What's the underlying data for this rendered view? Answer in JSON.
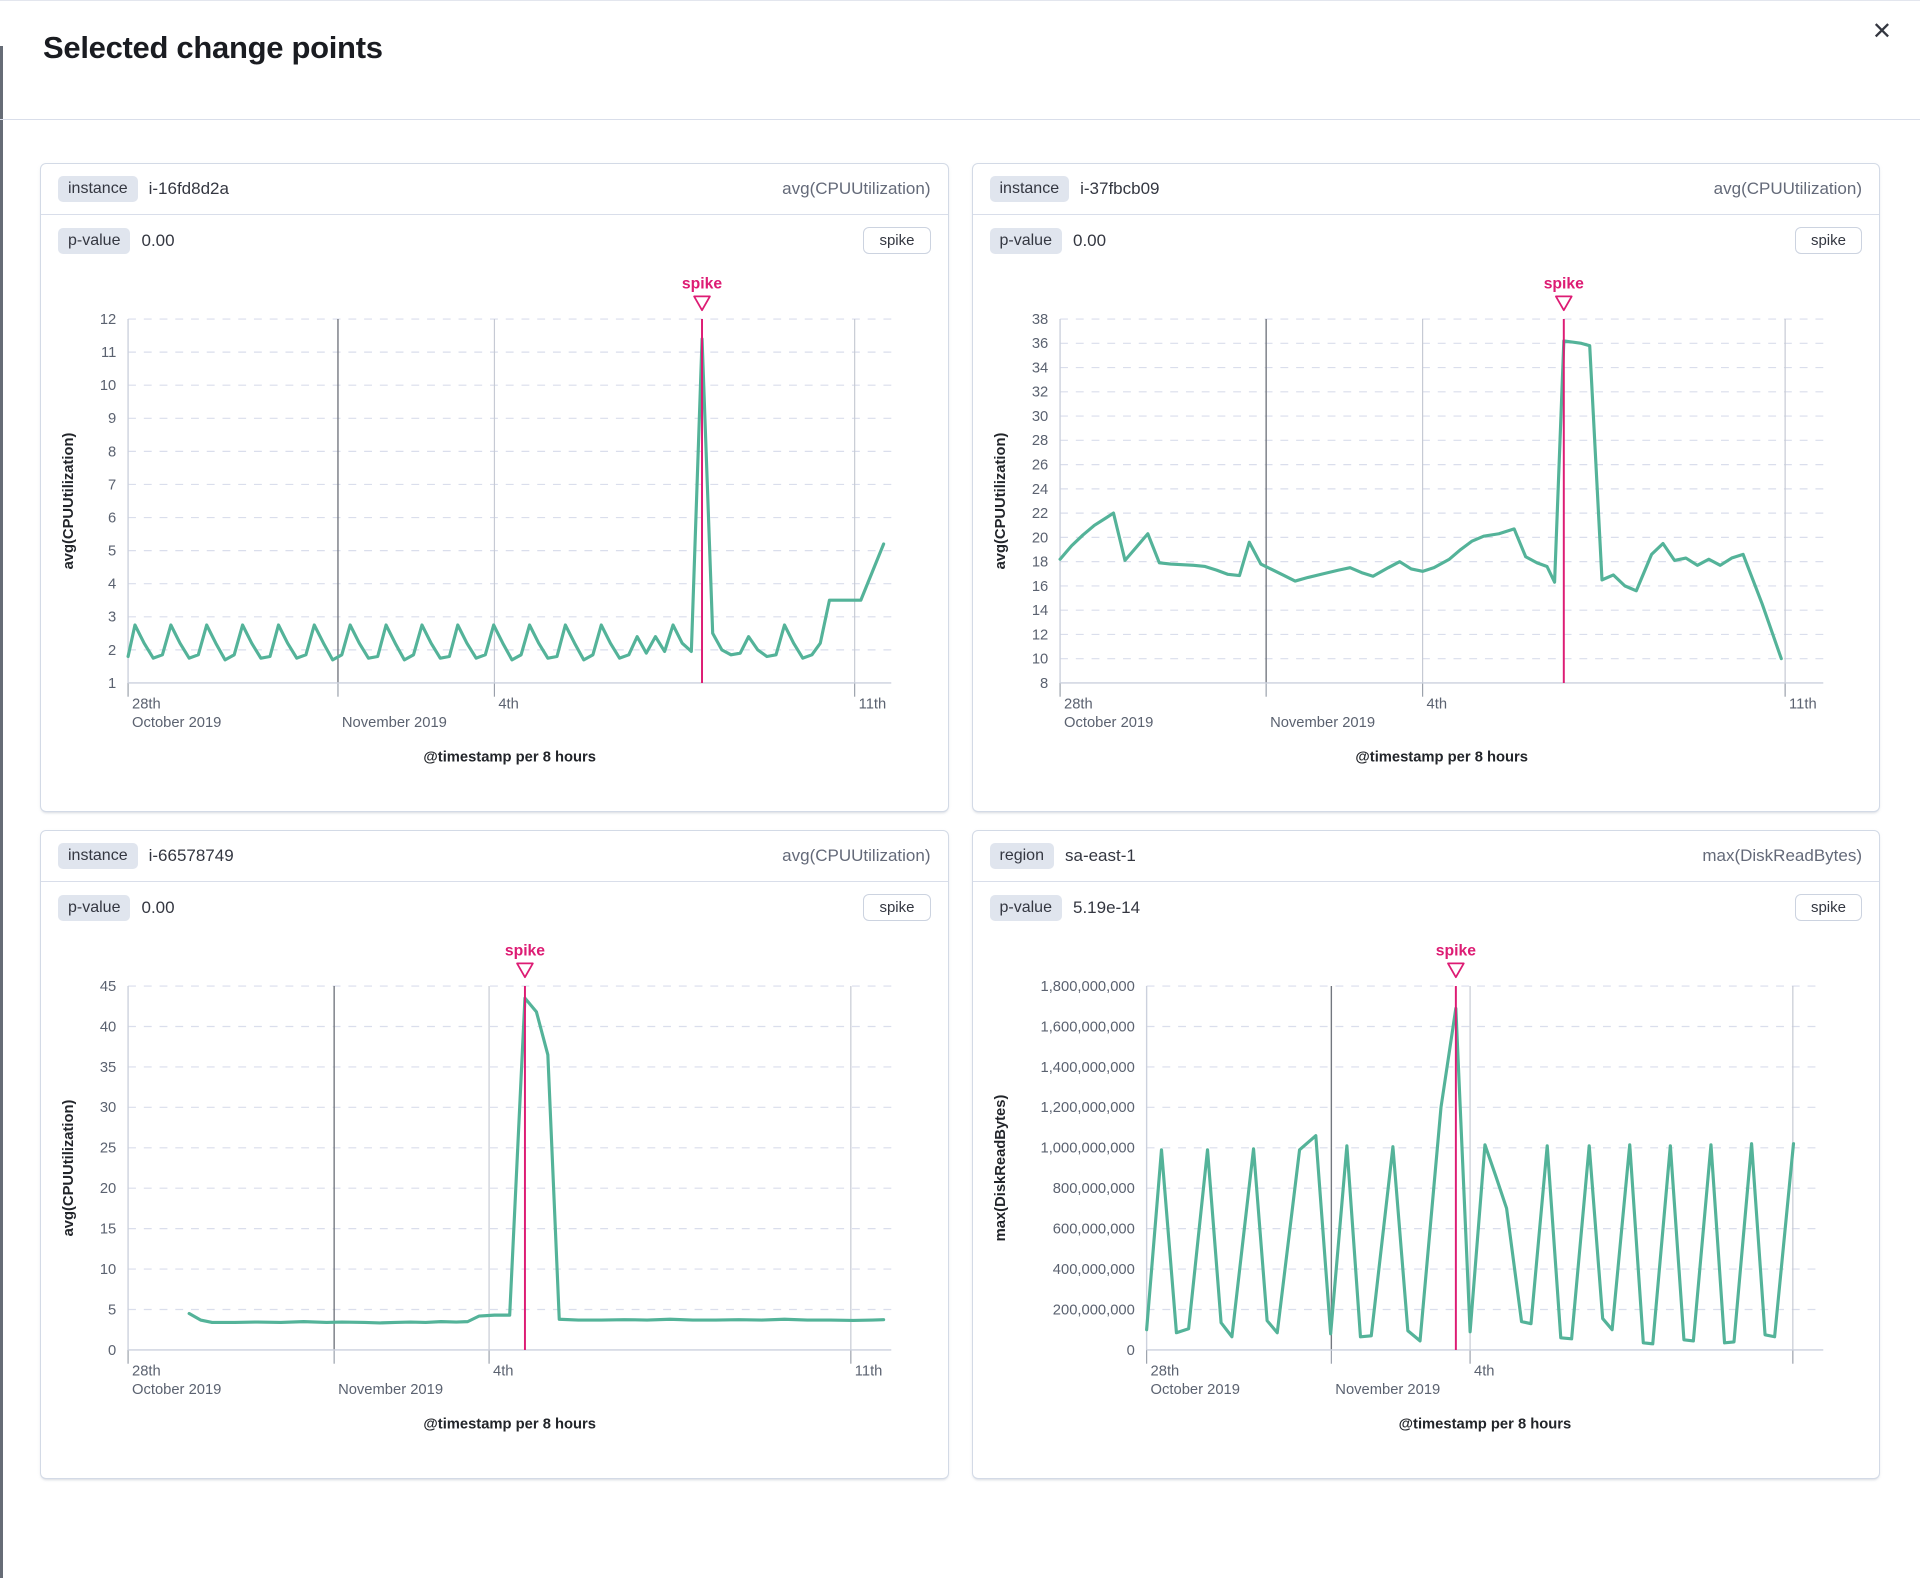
{
  "modal": {
    "title": "Selected change points",
    "close_label": "✕"
  },
  "colors": {
    "series_green": "#54b399",
    "accent_pink": "#dd1c74",
    "badge_bg": "#e0e5ee",
    "panel_border": "#d3dae6"
  },
  "panels": [
    {
      "field_label": "instance",
      "field_value": "i-16fd8d2a",
      "metric_label": "avg(CPUUtilization)",
      "pvalue_label": "p-value",
      "pvalue": "0.00",
      "type_label": "spike"
    },
    {
      "field_label": "instance",
      "field_value": "i-37fbcb09",
      "metric_label": "avg(CPUUtilization)",
      "pvalue_label": "p-value",
      "pvalue": "0.00",
      "type_label": "spike"
    },
    {
      "field_label": "instance",
      "field_value": "i-66578749",
      "metric_label": "avg(CPUUtilization)",
      "pvalue_label": "p-value",
      "pvalue": "0.00",
      "type_label": "spike"
    },
    {
      "field_label": "region",
      "field_value": "sa-east-1",
      "metric_label": "max(DiskReadBytes)",
      "pvalue_label": "p-value",
      "pvalue": "5.19e-14",
      "type_label": "spike"
    }
  ],
  "chart_data": [
    {
      "type": "line",
      "y_axis_title": "avg(CPUUtilization)",
      "x_axis_title": "@timestamp per 8 hours",
      "y_domain": [
        1,
        12
      ],
      "y_ticks": [
        {
          "v": 1,
          "label": "1"
        },
        {
          "v": 2,
          "label": "2"
        },
        {
          "v": 3,
          "label": "3"
        },
        {
          "v": 4,
          "label": "4"
        },
        {
          "v": 5,
          "label": "5"
        },
        {
          "v": 6,
          "label": "6"
        },
        {
          "v": 7,
          "label": "7"
        },
        {
          "v": 8,
          "label": "8"
        },
        {
          "v": 9,
          "label": "9"
        },
        {
          "v": 10,
          "label": "10"
        },
        {
          "v": 11,
          "label": "11"
        },
        {
          "v": 12,
          "label": "12"
        }
      ],
      "x_ticks": [
        {
          "pos": 0,
          "line": "none",
          "label1": "28th",
          "label2": "October 2019"
        },
        {
          "pos": 27.5,
          "line": "dark",
          "label2": "November 2019"
        },
        {
          "pos": 48,
          "line": "light",
          "label1": "4th"
        },
        {
          "pos": 95.2,
          "line": "light",
          "label1": "11th"
        }
      ],
      "annotation": {
        "pos": 75.2,
        "label": "spike"
      },
      "series": {
        "x": [
          0,
          0.9,
          2.1,
          3.3,
          4.5,
          5.6,
          6.8,
          8.0,
          9.2,
          10.3,
          11.5,
          12.7,
          13.9,
          15.0,
          16.2,
          17.4,
          18.6,
          19.7,
          20.9,
          22.1,
          23.3,
          24.4,
          25.6,
          26.8,
          28.0,
          29.1,
          30.3,
          31.5,
          32.7,
          33.8,
          35.0,
          36.2,
          37.4,
          38.5,
          39.7,
          40.9,
          42.1,
          43.2,
          44.4,
          45.6,
          46.8,
          47.9,
          49.1,
          50.3,
          51.5,
          52.6,
          53.8,
          55.0,
          56.2,
          57.3,
          58.5,
          59.7,
          60.9,
          62.0,
          63.2,
          64.4,
          65.6,
          66.7,
          67.9,
          69.1,
          70.3,
          71.4,
          72.6,
          73.8,
          75.2,
          76.6,
          77.8,
          79.0,
          80.2,
          81.3,
          82.5,
          83.7,
          84.9,
          86.0,
          87.2,
          88.4,
          89.6,
          90.7,
          91.9,
          94.3,
          96.0,
          99.0
        ],
        "y": [
          1.8,
          2.75,
          2.2,
          1.75,
          1.85,
          2.75,
          2.2,
          1.75,
          1.85,
          2.75,
          2.2,
          1.7,
          1.85,
          2.75,
          2.2,
          1.75,
          1.8,
          2.75,
          2.2,
          1.75,
          1.85,
          2.75,
          2.2,
          1.7,
          1.85,
          2.75,
          2.2,
          1.75,
          1.8,
          2.75,
          2.2,
          1.7,
          1.85,
          2.75,
          2.2,
          1.75,
          1.8,
          2.75,
          2.2,
          1.75,
          1.85,
          2.75,
          2.2,
          1.7,
          1.85,
          2.75,
          2.2,
          1.75,
          1.8,
          2.75,
          2.2,
          1.7,
          1.85,
          2.75,
          2.2,
          1.75,
          1.85,
          2.4,
          1.9,
          2.4,
          1.95,
          2.75,
          2.2,
          1.95,
          11.4,
          2.5,
          2.0,
          1.85,
          1.9,
          2.4,
          2.0,
          1.8,
          1.85,
          2.75,
          2.2,
          1.75,
          1.85,
          2.2,
          3.5,
          3.5,
          3.5,
          5.2
        ]
      }
    },
    {
      "type": "line",
      "y_axis_title": "avg(CPUUtilization)",
      "x_axis_title": "@timestamp per 8 hours",
      "y_domain": [
        8,
        38
      ],
      "y_ticks": [
        {
          "v": 8,
          "label": "8"
        },
        {
          "v": 10,
          "label": "10"
        },
        {
          "v": 12,
          "label": "12"
        },
        {
          "v": 14,
          "label": "14"
        },
        {
          "v": 16,
          "label": "16"
        },
        {
          "v": 18,
          "label": "18"
        },
        {
          "v": 20,
          "label": "20"
        },
        {
          "v": 22,
          "label": "22"
        },
        {
          "v": 24,
          "label": "24"
        },
        {
          "v": 26,
          "label": "26"
        },
        {
          "v": 28,
          "label": "28"
        },
        {
          "v": 30,
          "label": "30"
        },
        {
          "v": 32,
          "label": "32"
        },
        {
          "v": 34,
          "label": "34"
        },
        {
          "v": 36,
          "label": "36"
        },
        {
          "v": 38,
          "label": "38"
        }
      ],
      "x_ticks": [
        {
          "pos": 0,
          "line": "none",
          "label1": "28th",
          "label2": "October 2019"
        },
        {
          "pos": 27,
          "line": "dark",
          "label2": "November 2019"
        },
        {
          "pos": 47.5,
          "line": "light",
          "label1": "4th"
        },
        {
          "pos": 95,
          "line": "light",
          "label1": "11th"
        }
      ],
      "annotation": {
        "pos": 66,
        "label": "spike"
      },
      "series": {
        "x": [
          0,
          1.5,
          3,
          4.5,
          6,
          7,
          8.5,
          10,
          11.5,
          13,
          14.5,
          16,
          17.5,
          19,
          20.5,
          22,
          23.5,
          24.8,
          26.3,
          27.6,
          29.2,
          30.8,
          32.5,
          34.5,
          36.5,
          38,
          39.5,
          41,
          43,
          44.5,
          46,
          47.5,
          49,
          51,
          52.5,
          54,
          55.5,
          57.5,
          59.5,
          61,
          62.5,
          63.8,
          64.8,
          66,
          68.3,
          69.4,
          71,
          72.5,
          74,
          75.5,
          77.5,
          79,
          80.5,
          82,
          83.5,
          85,
          86.5,
          88,
          89.5,
          92,
          94.5
        ],
        "y": [
          18.2,
          19.3,
          20.2,
          21.0,
          21.6,
          22.0,
          18.1,
          19.2,
          20.3,
          17.9,
          17.8,
          17.75,
          17.7,
          17.6,
          17.3,
          16.95,
          16.85,
          19.6,
          17.8,
          17.4,
          16.9,
          16.4,
          16.7,
          17.0,
          17.3,
          17.5,
          17.1,
          16.8,
          17.5,
          18.0,
          17.4,
          17.2,
          17.5,
          18.2,
          19.0,
          19.7,
          20.1,
          20.3,
          20.7,
          18.4,
          17.9,
          17.6,
          16.3,
          36.2,
          36.0,
          35.8,
          16.5,
          16.9,
          16.0,
          15.6,
          18.6,
          19.5,
          18.1,
          18.3,
          17.7,
          18.2,
          17.7,
          18.3,
          18.6,
          14.5,
          10.0
        ]
      }
    },
    {
      "type": "line",
      "y_axis_title": "avg(CPUUtilization)",
      "x_axis_title": "@timestamp per 8 hours",
      "y_domain": [
        0,
        45
      ],
      "y_ticks": [
        {
          "v": 0,
          "label": "0"
        },
        {
          "v": 5,
          "label": "5"
        },
        {
          "v": 10,
          "label": "10"
        },
        {
          "v": 15,
          "label": "15"
        },
        {
          "v": 20,
          "label": "20"
        },
        {
          "v": 25,
          "label": "25"
        },
        {
          "v": 30,
          "label": "30"
        },
        {
          "v": 35,
          "label": "35"
        },
        {
          "v": 40,
          "label": "40"
        },
        {
          "v": 45,
          "label": "45"
        }
      ],
      "x_ticks": [
        {
          "pos": 0,
          "line": "none",
          "label1": "28th",
          "label2": "October 2019"
        },
        {
          "pos": 27,
          "line": "dark",
          "label2": "November 2019"
        },
        {
          "pos": 47.3,
          "line": "light",
          "label1": "4th"
        },
        {
          "pos": 94.7,
          "line": "light",
          "label1": "11th"
        }
      ],
      "annotation": {
        "pos": 52,
        "label": "spike"
      },
      "series": {
        "x": [
          8,
          9.5,
          11,
          14,
          17,
          20,
          23,
          26,
          28,
          31,
          33,
          35,
          37,
          39,
          41,
          43,
          44.5,
          46,
          48,
          50,
          52,
          53.5,
          55,
          56.5,
          59,
          62,
          65,
          68,
          71,
          74,
          77,
          80,
          83,
          86,
          89,
          92,
          95,
          97.5,
          99
        ],
        "y": [
          4.5,
          3.7,
          3.4,
          3.4,
          3.45,
          3.4,
          3.5,
          3.4,
          3.45,
          3.4,
          3.35,
          3.4,
          3.45,
          3.4,
          3.5,
          3.45,
          3.5,
          4.2,
          4.3,
          4.3,
          43.5,
          41.8,
          36.5,
          3.8,
          3.7,
          3.7,
          3.75,
          3.7,
          3.8,
          3.7,
          3.7,
          3.75,
          3.7,
          3.8,
          3.7,
          3.7,
          3.65,
          3.7,
          3.75
        ]
      }
    },
    {
      "type": "line",
      "y_axis_title": "max(DiskReadBytes)",
      "x_axis_title": "@timestamp per 8 hours",
      "y_domain": [
        0,
        1800000000
      ],
      "y_ticks": [
        {
          "v": 0,
          "label": "0"
        },
        {
          "v": 200000000,
          "label": "200,000,000"
        },
        {
          "v": 400000000,
          "label": "400,000,000"
        },
        {
          "v": 600000000,
          "label": "600,000,000"
        },
        {
          "v": 800000000,
          "label": "800,000,000"
        },
        {
          "v": 1000000000,
          "label": "1,000,000,000"
        },
        {
          "v": 1200000000,
          "label": "1,200,000,000"
        },
        {
          "v": 1400000000,
          "label": "1,400,000,000"
        },
        {
          "v": 1600000000,
          "label": "1,600,000,000"
        },
        {
          "v": 1800000000,
          "label": "1,800,000,000"
        }
      ],
      "x_ticks": [
        {
          "pos": 0,
          "line": "none",
          "label1": "28th",
          "label2": "October 2019"
        },
        {
          "pos": 27.3,
          "line": "dark",
          "label2": "November 2019"
        },
        {
          "pos": 47.8,
          "line": "light",
          "label1": "4th"
        },
        {
          "pos": 95.5,
          "line": "light"
        }
      ],
      "annotation": {
        "pos": 45.7,
        "label": "spike"
      },
      "series": {
        "x": [
          0,
          2.2,
          4.4,
          6.2,
          9.0,
          11.0,
          12.6,
          15.8,
          17.8,
          19.3,
          22.6,
          25.0,
          27.2,
          29.6,
          31.6,
          33.2,
          36.4,
          38.6,
          40.4,
          43.5,
          45.7,
          47.8,
          50.0,
          51.6,
          53.2,
          55.4,
          56.8,
          59.2,
          61.2,
          62.8,
          65.4,
          67.4,
          68.8,
          71.4,
          73.4,
          74.8,
          77.4,
          79.4,
          80.8,
          83.4,
          85.4,
          86.8,
          89.4,
          91.4,
          92.8,
          95.6
        ],
        "y": [
          100000000,
          990000000,
          85000000,
          105000000,
          990000000,
          135000000,
          65000000,
          995000000,
          145000000,
          85000000,
          990000000,
          1060000000,
          80000000,
          1010000000,
          65000000,
          70000000,
          1005000000,
          95000000,
          45000000,
          1200000000,
          1690000000,
          90000000,
          1015000000,
          860000000,
          700000000,
          140000000,
          130000000,
          1010000000,
          60000000,
          55000000,
          1010000000,
          155000000,
          100000000,
          1015000000,
          35000000,
          30000000,
          1010000000,
          50000000,
          45000000,
          1015000000,
          35000000,
          40000000,
          1020000000,
          75000000,
          65000000,
          1020000000
        ]
      }
    }
  ]
}
